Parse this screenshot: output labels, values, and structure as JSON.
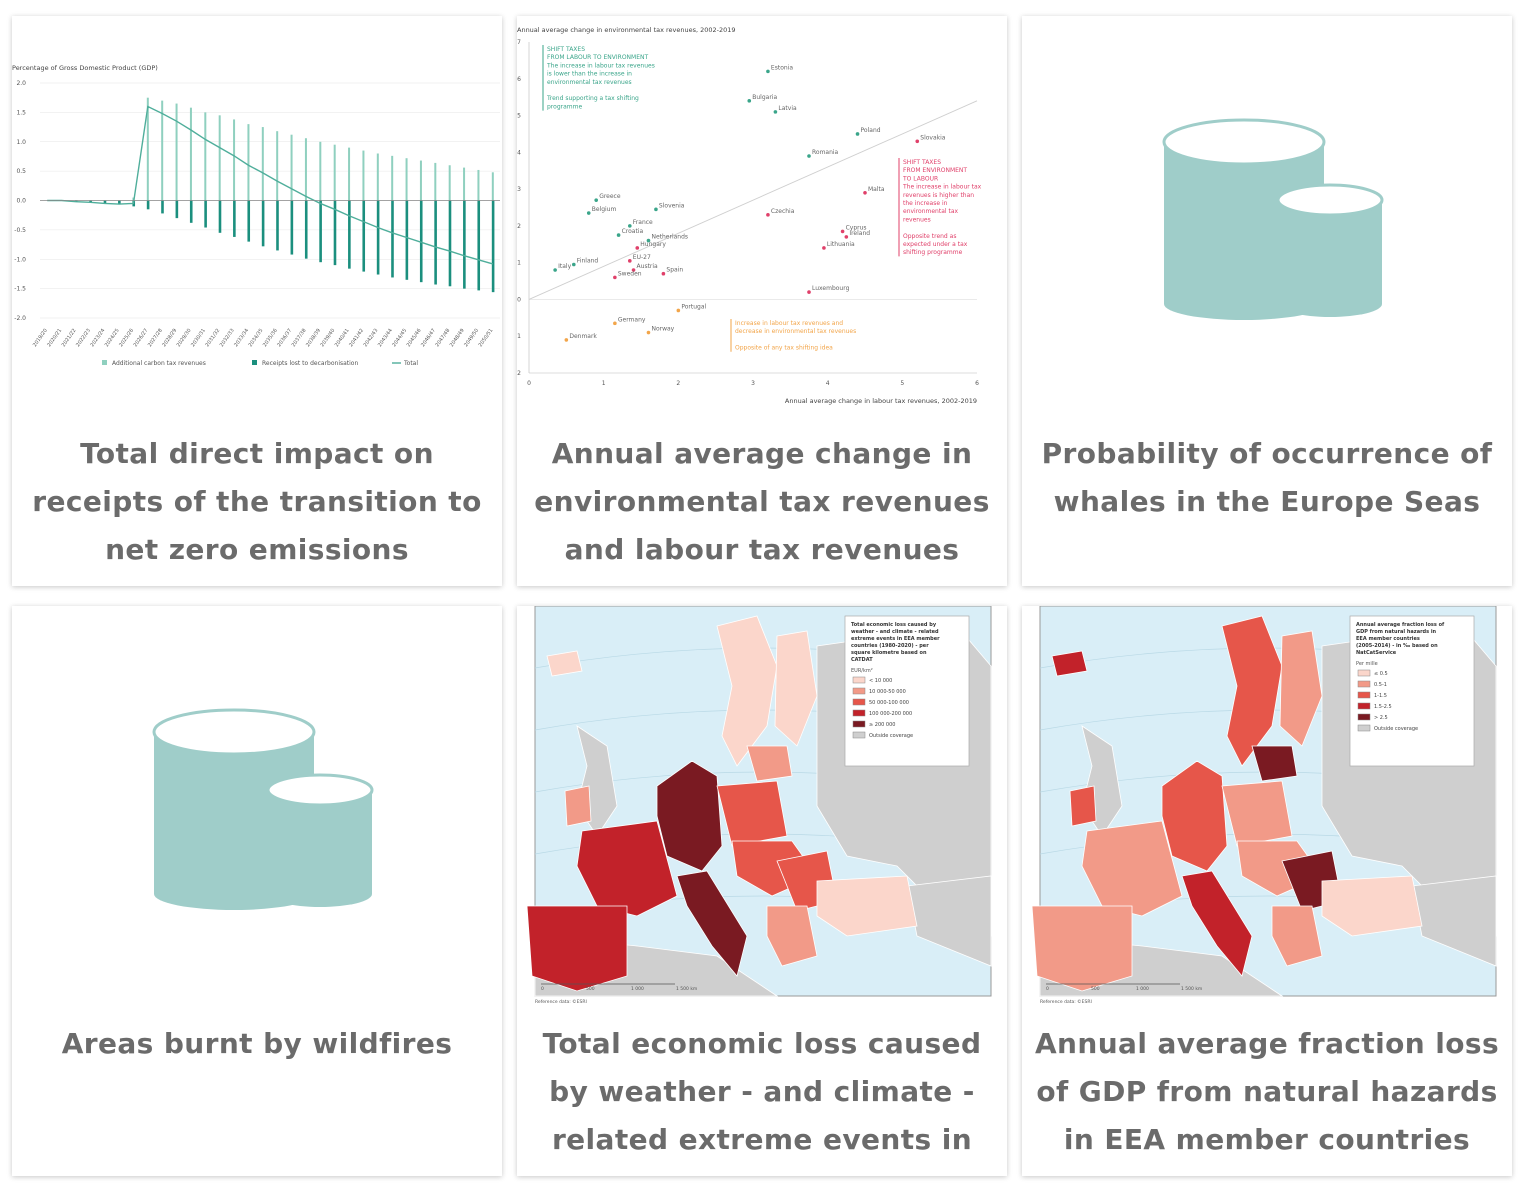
{
  "cards": [
    {
      "title": "Total direct impact on receipts of the transition to net zero emissions",
      "chart_data": {
        "type": "bar",
        "ylabel": "Percentage of Gross Domestic Product (GDP)",
        "ylim": [
          -2.0,
          2.0
        ],
        "y_ticks": [
          "2.0",
          "1.5",
          "1.0",
          "0.5",
          "0.0",
          "-0.5",
          "-1.0",
          "-1.5",
          "-2.0"
        ],
        "categories": [
          "2019/20",
          "2020/21",
          "2021/22",
          "2022/23",
          "2023/24",
          "2024/25",
          "2025/26",
          "2026/27",
          "2027/28",
          "2028/29",
          "2029/30",
          "2030/31",
          "2031/32",
          "2032/33",
          "2033/34",
          "2034/35",
          "2035/36",
          "2036/37",
          "2037/38",
          "2038/39",
          "2039/40",
          "2040/41",
          "2041/42",
          "2042/43",
          "2043/44",
          "2044/45",
          "2045/46",
          "2046/47",
          "2047/48",
          "2048/49",
          "2049/50",
          "2050/51"
        ],
        "series": [
          {
            "name": "Additional carbon tax revenues",
            "values": [
              0,
              0,
              0,
              0,
              0,
              0,
              0.05,
              1.75,
              1.7,
              1.65,
              1.58,
              1.5,
              1.45,
              1.38,
              1.3,
              1.25,
              1.18,
              1.12,
              1.06,
              1.0,
              0.95,
              0.9,
              0.85,
              0.8,
              0.76,
              0.72,
              0.68,
              0.64,
              0.6,
              0.56,
              0.52,
              0.48
            ]
          },
          {
            "name": "Receipts lost to decarbonisation",
            "values": [
              0,
              0,
              -0.02,
              -0.03,
              -0.05,
              -0.06,
              -0.1,
              -0.15,
              -0.22,
              -0.3,
              -0.38,
              -0.46,
              -0.55,
              -0.62,
              -0.7,
              -0.78,
              -0.85,
              -0.92,
              -0.99,
              -1.05,
              -1.1,
              -1.16,
              -1.21,
              -1.26,
              -1.31,
              -1.35,
              -1.39,
              -1.43,
              -1.46,
              -1.5,
              -1.53,
              -1.56
            ]
          },
          {
            "name": "Total",
            "values": [
              0,
              0,
              -0.02,
              -0.03,
              -0.05,
              -0.06,
              -0.05,
              1.6,
              1.48,
              1.35,
              1.2,
              1.04,
              0.9,
              0.76,
              0.6,
              0.47,
              0.33,
              0.2,
              0.07,
              -0.05,
              -0.15,
              -0.26,
              -0.36,
              -0.46,
              -0.55,
              -0.63,
              -0.71,
              -0.79,
              -0.86,
              -0.94,
              -1.01,
              -1.08
            ]
          }
        ],
        "colors": {
          "carbon": "#8fd0bf",
          "receipts": "#1b8f7e",
          "total": "#4fae9b"
        }
      }
    },
    {
      "title": "Annual average change in environmental tax revenues and labour tax revenues",
      "chart_data": {
        "type": "scatter",
        "title": "Annual average change in environmental tax revenues, 2002-2019",
        "xlabel": "Annual average change in labour tax revenues, 2002-2019",
        "xlim": [
          0,
          6
        ],
        "ylim": [
          -2,
          7
        ],
        "x_ticks": [
          "0",
          "1",
          "2",
          "3",
          "4",
          "5",
          "6"
        ],
        "y_ticks": [
          "7",
          "6",
          "5",
          "4",
          "3",
          "2",
          "1",
          "0",
          "-1",
          "-2"
        ],
        "points": [
          {
            "label": "Estonia",
            "x": 3.2,
            "y": 6.2,
            "group": "green"
          },
          {
            "label": "Bulgaria",
            "x": 2.95,
            "y": 5.4,
            "group": "green"
          },
          {
            "label": "Latvia",
            "x": 3.3,
            "y": 5.1,
            "group": "green"
          },
          {
            "label": "Poland",
            "x": 4.4,
            "y": 4.5,
            "group": "green"
          },
          {
            "label": "Romania",
            "x": 3.75,
            "y": 3.9,
            "group": "green"
          },
          {
            "label": "Greece",
            "x": 0.9,
            "y": 2.7,
            "group": "green"
          },
          {
            "label": "Belgium",
            "x": 0.8,
            "y": 2.35,
            "group": "green"
          },
          {
            "label": "Slovenia",
            "x": 1.7,
            "y": 2.45,
            "group": "green"
          },
          {
            "label": "France",
            "x": 1.35,
            "y": 2.0,
            "group": "green"
          },
          {
            "label": "Croatia",
            "x": 1.2,
            "y": 1.75,
            "group": "green"
          },
          {
            "label": "Netherlands",
            "x": 1.6,
            "y": 1.6,
            "group": "green"
          },
          {
            "label": "Finland",
            "x": 0.6,
            "y": 0.95,
            "group": "green"
          },
          {
            "label": "Italy",
            "x": 0.35,
            "y": 0.8,
            "group": "green"
          },
          {
            "label": "Slovakia",
            "x": 5.2,
            "y": 4.3,
            "group": "red"
          },
          {
            "label": "Malta",
            "x": 4.5,
            "y": 2.9,
            "group": "red"
          },
          {
            "label": "Czechia",
            "x": 3.2,
            "y": 2.3,
            "group": "red"
          },
          {
            "label": "Cyprus",
            "x": 4.2,
            "y": 1.85,
            "group": "red"
          },
          {
            "label": "Ireland",
            "x": 4.25,
            "y": 1.7,
            "group": "red"
          },
          {
            "label": "Lithuania",
            "x": 3.95,
            "y": 1.4,
            "group": "red"
          },
          {
            "label": "Hungary",
            "x": 1.45,
            "y": 1.4,
            "group": "red"
          },
          {
            "label": "EU-27",
            "x": 1.35,
            "y": 1.05,
            "group": "red"
          },
          {
            "label": "Austria",
            "x": 1.4,
            "y": 0.8,
            "group": "red"
          },
          {
            "label": "Spain",
            "x": 1.8,
            "y": 0.7,
            "group": "red"
          },
          {
            "label": "Sweden",
            "x": 1.15,
            "y": 0.6,
            "group": "red"
          },
          {
            "label": "Luxembourg",
            "x": 3.75,
            "y": 0.2,
            "group": "red"
          },
          {
            "label": "Portugal",
            "x": 2.0,
            "y": -0.3,
            "group": "orange"
          },
          {
            "label": "Germany",
            "x": 1.15,
            "y": -0.65,
            "group": "orange"
          },
          {
            "label": "Norway",
            "x": 1.6,
            "y": -0.9,
            "group": "orange"
          },
          {
            "label": "Denmark",
            "x": 0.5,
            "y": -1.1,
            "group": "orange"
          }
        ],
        "annotations": [
          {
            "group": "green",
            "lines": [
              "SHIFT TAXES",
              "FROM LABOUR TO ENVIRONMENT",
              "The increase in labour tax revenues",
              "is lower than the increase in",
              "environmental tax revenues",
              "",
              "Trend supporting a tax shifting",
              "programme"
            ]
          },
          {
            "group": "red",
            "lines": [
              "SHIFT TAXES",
              "FROM ENVIRONMENT",
              "TO LABOUR",
              "The increase in labour tax",
              "revenues is higher than",
              "the increase in",
              "environmental tax",
              "revenues",
              "",
              "Opposite trend as",
              "expected under a tax",
              "shifting programme"
            ]
          },
          {
            "group": "orange",
            "lines": [
              "Increase in labour tax revenues and",
              "decrease in environmental tax revenues",
              "",
              "Opposite of any tax shifting idea"
            ]
          }
        ],
        "colors": {
          "green": "#3aa58a",
          "red": "#e0406a",
          "orange": "#f2a54a"
        }
      }
    },
    {
      "title": "Probability of occurrence of whales in the Europe Seas",
      "icon": "database-placeholder-icon"
    },
    {
      "title": "Areas burnt by wildfires",
      "icon": "database-placeholder-icon"
    },
    {
      "title": "Total economic loss caused by weather - and climate - related extreme events in",
      "map": {
        "legend_title": [
          "Total economic loss caused by",
          "weather - and climate - related",
          "extreme events in EEA member",
          "countries (1980-2020) - per",
          "square kilometre based on",
          "CATDAT"
        ],
        "legend_unit": "EUR/km²",
        "legend_items": [
          "< 10 000",
          "10 000-50 000",
          "50 000-100 000",
          "100 000-200 000",
          "≥ 200 000",
          "Outside coverage"
        ],
        "scale": [
          "0",
          "500",
          "1 000",
          "1 500 km"
        ],
        "source": "Reference data: ©ESRI"
      }
    },
    {
      "title": "Annual average fraction loss of GDP from natural hazards in EEA member countries",
      "map": {
        "legend_title": [
          "Annual average fraction loss of",
          "GDP from natural hazards in",
          "EEA member countries",
          "(2005-2014) - in ‰ based on",
          "NatCatService"
        ],
        "legend_unit": "Per mille",
        "legend_items": [
          "≤ 0.5",
          "0.5-1",
          "1-1.5",
          "1.5-2.5",
          "> 2.5",
          "Outside coverage"
        ],
        "scale": [
          "0",
          "500",
          "1 000",
          "1 500 km"
        ],
        "source": "Reference data: ©ESRI"
      }
    }
  ]
}
